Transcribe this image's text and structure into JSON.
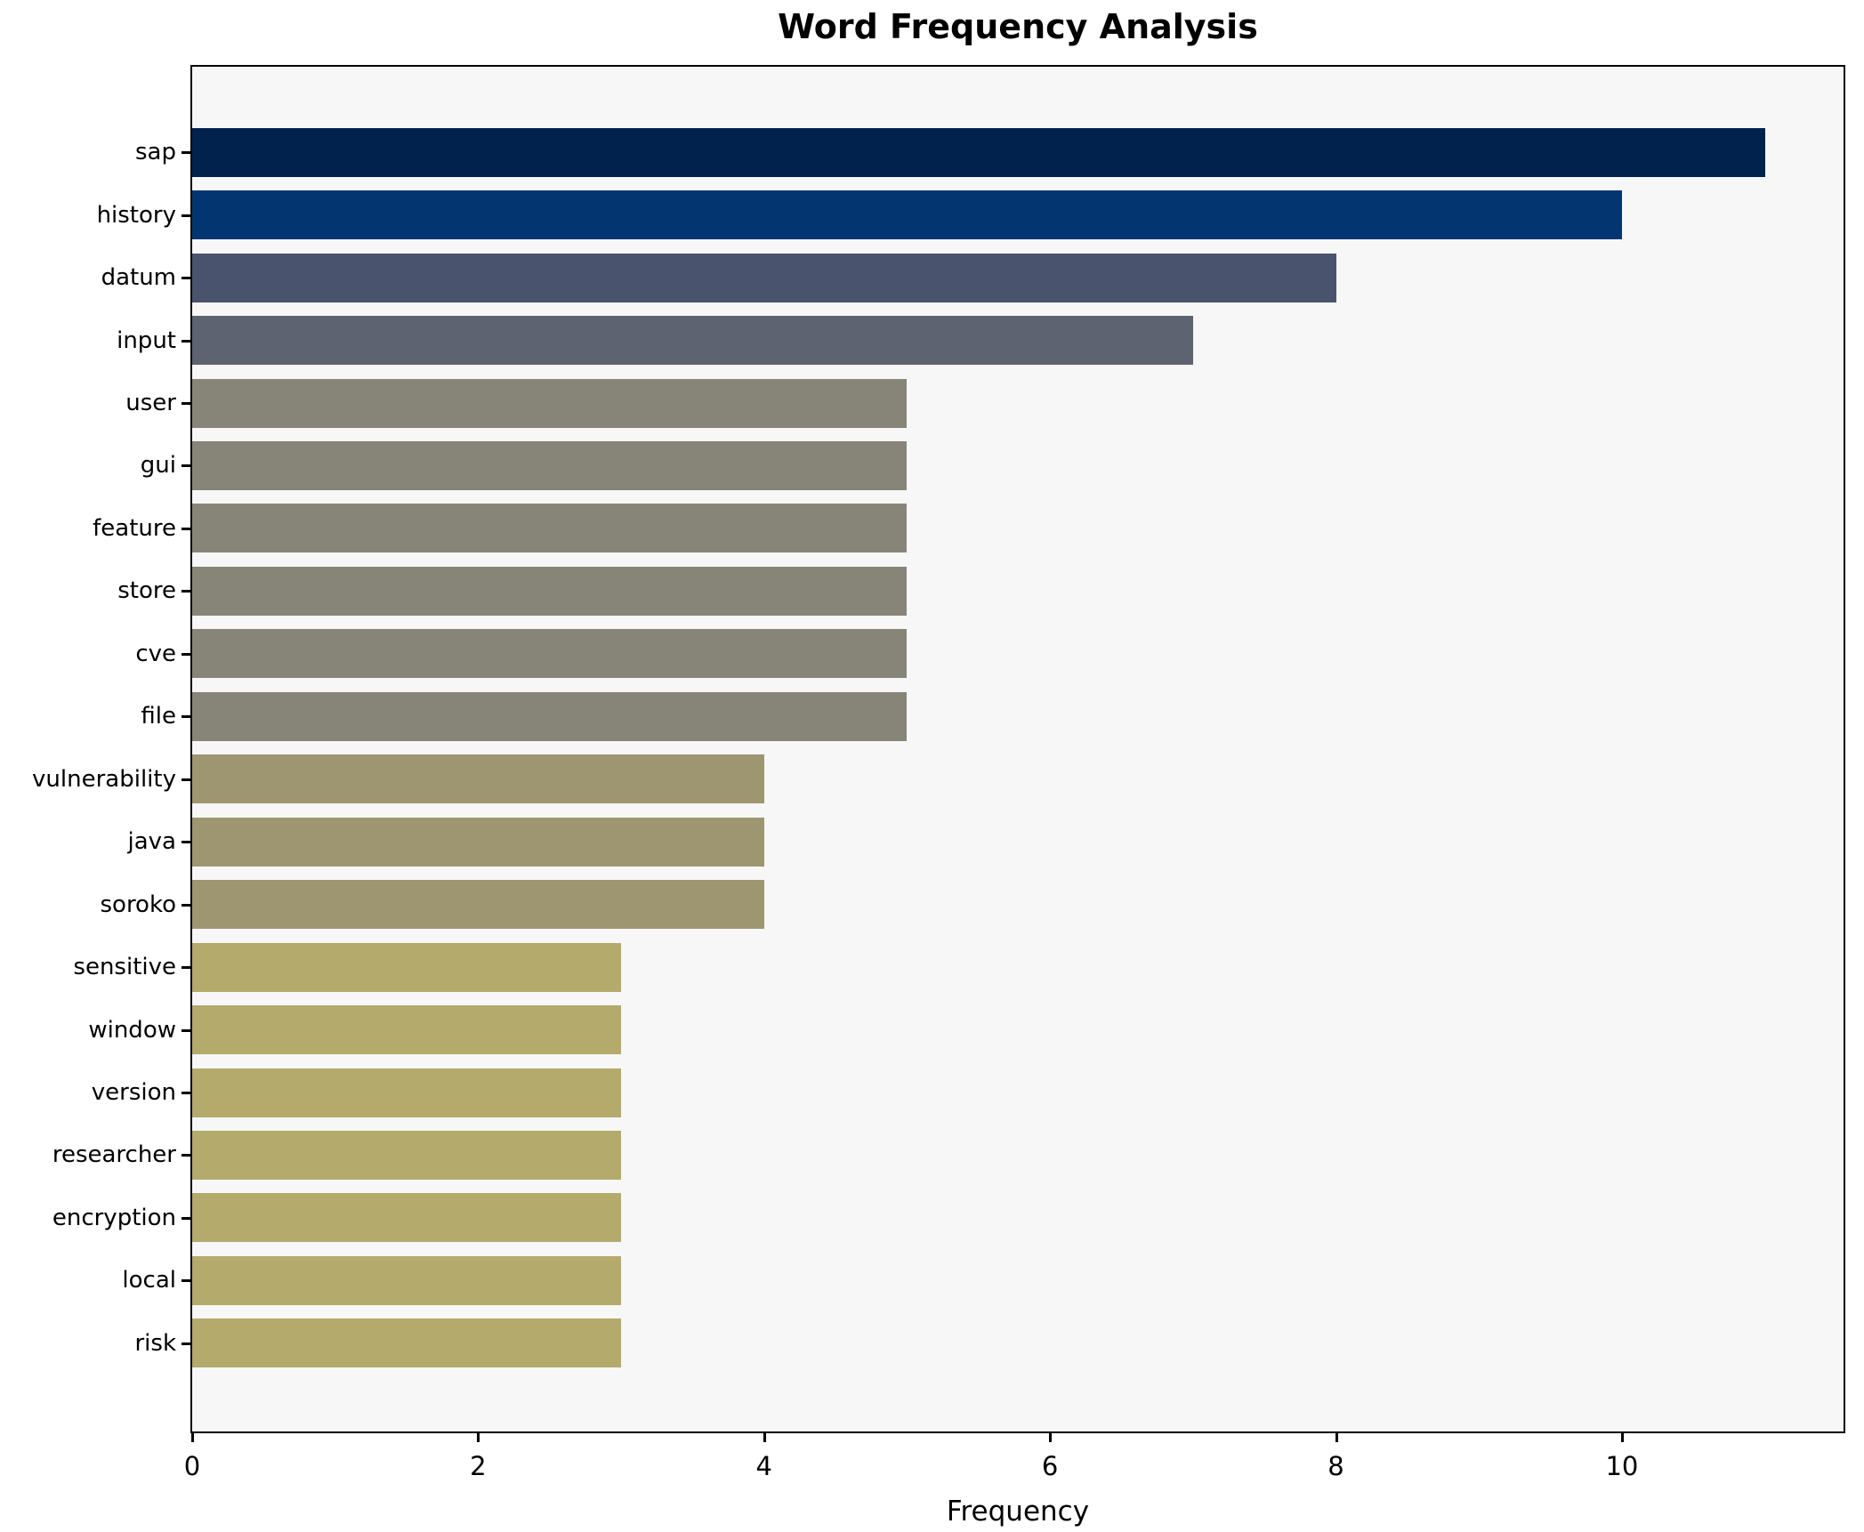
{
  "title": "Word Frequency Analysis",
  "xlabel": "Frequency",
  "chart_data": {
    "type": "bar",
    "orientation": "horizontal",
    "title": "Word Frequency Analysis",
    "xlabel": "Frequency",
    "ylabel": "",
    "categories": [
      "sap",
      "history",
      "datum",
      "input",
      "user",
      "gui",
      "feature",
      "store",
      "cve",
      "file",
      "vulnerability",
      "java",
      "soroko",
      "sensitive",
      "window",
      "version",
      "researcher",
      "encryption",
      "local",
      "risk"
    ],
    "values": [
      11,
      10,
      8,
      7,
      5,
      5,
      5,
      5,
      5,
      5,
      4,
      4,
      4,
      3,
      3,
      3,
      3,
      3,
      3,
      3
    ],
    "bar_colors": [
      "#02224e",
      "#033671",
      "#4a536e",
      "#5d6370",
      "#878578",
      "#878578",
      "#878578",
      "#878578",
      "#878578",
      "#878578",
      "#9d9671",
      "#9d9671",
      "#9d9671",
      "#b3aa6c",
      "#b3aa6c",
      "#b3aa6c",
      "#b3aa6c",
      "#b3aa6c",
      "#b3aa6c",
      "#b3aa6c"
    ],
    "xlim": [
      0,
      11.55
    ],
    "x_ticks": [
      0,
      2,
      4,
      6,
      8,
      10
    ],
    "grid": false,
    "legend": null,
    "plot_bg": "#f6f7f6",
    "figure_bg": "#ffffff",
    "bar_height_fraction": 0.78
  }
}
